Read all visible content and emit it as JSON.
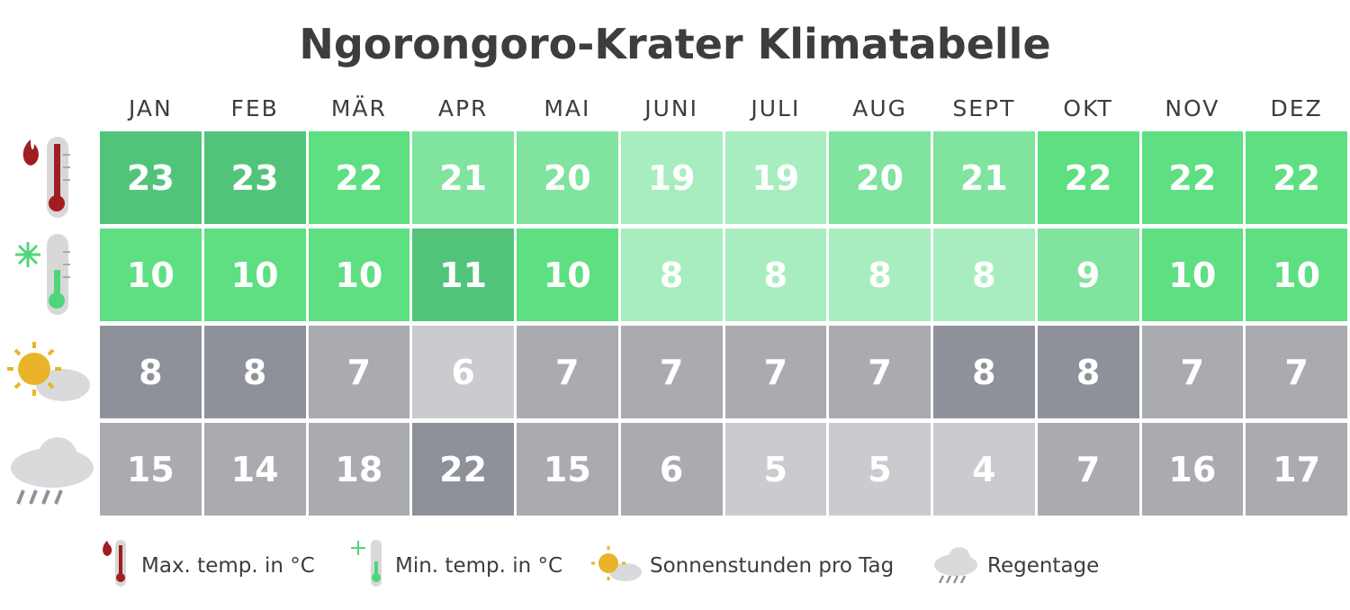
{
  "title": "Ngorongoro-Krater Klimatabelle",
  "months": [
    "JAN",
    "FEB",
    "MÄR",
    "APR",
    "MAI",
    "JUNI",
    "JULI",
    "AUG",
    "SEPT",
    "OKT",
    "NOV",
    "DEZ"
  ],
  "rows": [
    {
      "values": [
        23,
        23,
        22,
        21,
        20,
        19,
        19,
        20,
        21,
        22,
        22,
        22
      ]
    },
    {
      "values": [
        10,
        10,
        10,
        11,
        10,
        8,
        8,
        8,
        8,
        9,
        10,
        10
      ]
    },
    {
      "values": [
        8,
        8,
        7,
        6,
        7,
        7,
        7,
        7,
        8,
        8,
        7,
        7
      ]
    },
    {
      "values": [
        15,
        14,
        18,
        22,
        15,
        6,
        5,
        5,
        4,
        7,
        16,
        17
      ]
    }
  ],
  "legend": [
    "Max. temp. in °C",
    "Min. temp. in °C",
    "Sonnenstunden pro Tag",
    "Regentage"
  ]
}
